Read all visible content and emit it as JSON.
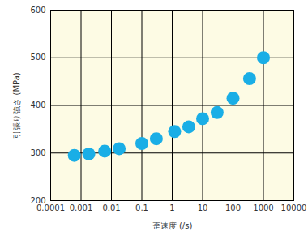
{
  "chart_data": {
    "type": "scatter",
    "xlabel": "歪速度 (/s)",
    "ylabel": "引張り強さ (MPa)",
    "x": [
      0.0006,
      0.0018,
      0.006,
      0.018,
      0.1,
      0.3,
      1.2,
      3.5,
      10,
      30,
      100,
      350,
      1000
    ],
    "values": [
      295,
      298,
      304,
      309,
      320,
      330,
      345,
      355,
      372,
      385,
      415,
      456,
      500
    ],
    "xlim": [
      0.0001,
      10000
    ],
    "xticks": [
      0.0001,
      0.001,
      0.01,
      0.1,
      1,
      10,
      100,
      1000,
      10000
    ],
    "ylim": [
      200,
      600
    ],
    "yticks": [
      200,
      300,
      400,
      500,
      600
    ],
    "log": "x",
    "grid": true,
    "color": "#1aaee6",
    "marker": "circle"
  }
}
